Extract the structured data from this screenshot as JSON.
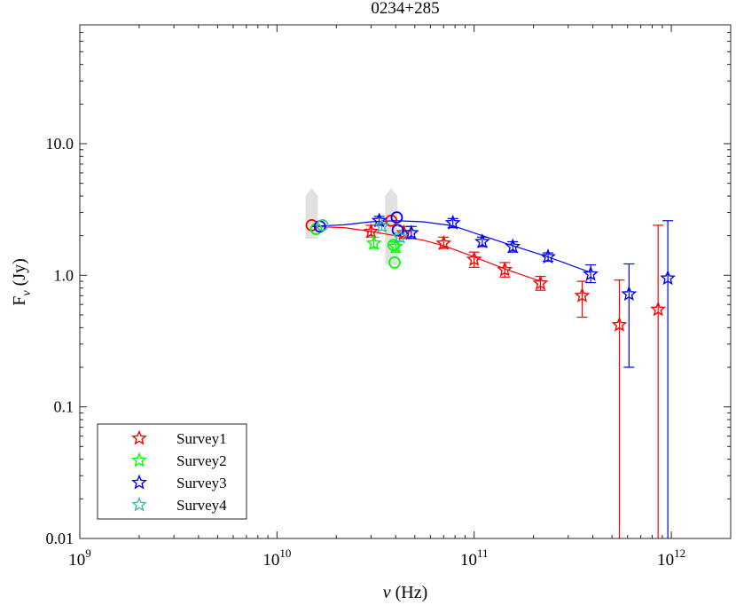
{
  "chart_data": {
    "type": "scatter",
    "title": "0234+285",
    "xlabel": "ν (Hz)",
    "ylabel": "Fν (Jy)",
    "ylabel_main": "F",
    "ylabel_sub": "ν",
    "ylabel_unit": " (Jy)",
    "xlabel_sym": "ν",
    "xlabel_unit": " (Hz)",
    "xscale": "log",
    "yscale": "log",
    "xlim": [
      1000000000.0,
      2000000000000.0
    ],
    "ylim": [
      0.01,
      80
    ],
    "legend_position": "bottom-left",
    "x_ticks": [
      {
        "value": 1000000000.0,
        "base": "10",
        "exp": "9"
      },
      {
        "value": 10000000000.0,
        "base": "10",
        "exp": "10"
      },
      {
        "value": 100000000000.0,
        "base": "10",
        "exp": "11"
      },
      {
        "value": 1000000000000.0,
        "base": "10",
        "exp": "12"
      }
    ],
    "y_ticks": [
      {
        "value": 0.01,
        "label": "0.01"
      },
      {
        "value": 0.1,
        "label": "0.1"
      },
      {
        "value": 1,
        "label": "1.0"
      },
      {
        "value": 10,
        "label": "10.0"
      }
    ],
    "variability_ranges": [
      {
        "x": 15000000000.0,
        "ylow": 1.9,
        "yhigh": 4.6
      },
      {
        "x": 38000000000.0,
        "ylow": 1.2,
        "yhigh": 4.6
      }
    ],
    "series": [
      {
        "name": "Survey1",
        "color": "#ff0000",
        "points": [
          {
            "x": 30000000000.0,
            "y": 2.15,
            "lo": 1.95,
            "hi": 2.4,
            "marker": "star"
          },
          {
            "x": 44000000000.0,
            "y": 2.1,
            "lo": 1.9,
            "hi": 2.35,
            "marker": "star"
          },
          {
            "x": 70000000000.0,
            "y": 1.75,
            "lo": 1.6,
            "hi": 1.95,
            "marker": "star"
          },
          {
            "x": 100000000000.0,
            "y": 1.32,
            "lo": 1.15,
            "hi": 1.5,
            "marker": "star"
          },
          {
            "x": 143000000000.0,
            "y": 1.1,
            "lo": 0.97,
            "hi": 1.25,
            "marker": "star"
          },
          {
            "x": 217000000000.0,
            "y": 0.87,
            "lo": 0.77,
            "hi": 0.98,
            "marker": "star"
          },
          {
            "x": 353000000000.0,
            "y": 0.7,
            "lo": 0.48,
            "hi": 0.9,
            "marker": "star"
          },
          {
            "x": 545000000000.0,
            "y": 0.42,
            "lo": 0.001,
            "hi": 0.92,
            "marker": "star"
          },
          {
            "x": 857000000000.0,
            "y": 0.55,
            "lo": 0.001,
            "hi": 2.4,
            "marker": "star"
          },
          {
            "x": 15000000000.0,
            "y": 2.4,
            "marker": "circle"
          },
          {
            "x": 38000000000.0,
            "y": 2.6,
            "marker": "circle"
          }
        ],
        "fit": [
          {
            "x": 15000000000.0,
            "y": 2.35
          },
          {
            "x": 22000000000.0,
            "y": 2.3
          },
          {
            "x": 30000000000.0,
            "y": 2.15
          },
          {
            "x": 40000000000.0,
            "y": 2.0
          },
          {
            "x": 55000000000.0,
            "y": 1.85
          },
          {
            "x": 70000000000.0,
            "y": 1.68
          },
          {
            "x": 100000000000.0,
            "y": 1.38
          },
          {
            "x": 143000000000.0,
            "y": 1.12
          },
          {
            "x": 217000000000.0,
            "y": 0.9
          }
        ]
      },
      {
        "name": "Survey2",
        "color": "#00ff00",
        "points": [
          {
            "x": 31000000000.0,
            "y": 1.75,
            "lo": 1.6,
            "hi": 1.95,
            "marker": "star"
          },
          {
            "x": 40000000000.0,
            "y": 1.65,
            "lo": 1.5,
            "hi": 1.8,
            "marker": "star"
          },
          {
            "x": 15800000000.0,
            "y": 2.25,
            "marker": "circle"
          },
          {
            "x": 39000000000.0,
            "y": 1.7,
            "marker": "circle"
          },
          {
            "x": 39500000000.0,
            "y": 1.25,
            "marker": "circle"
          }
        ],
        "fit": []
      },
      {
        "name": "Survey3",
        "color": "#0000ff",
        "points": [
          {
            "x": 33000000000.0,
            "y": 2.6,
            "lo": 2.4,
            "hi": 2.8,
            "marker": "star"
          },
          {
            "x": 48000000000.0,
            "y": 2.1,
            "lo": 1.9,
            "hi": 2.35,
            "marker": "star"
          },
          {
            "x": 78000000000.0,
            "y": 2.5,
            "lo": 2.3,
            "hi": 2.7,
            "marker": "star"
          },
          {
            "x": 110000000000.0,
            "y": 1.8,
            "lo": 1.65,
            "hi": 1.95,
            "marker": "star"
          },
          {
            "x": 157000000000.0,
            "y": 1.65,
            "lo": 1.5,
            "hi": 1.8,
            "marker": "star"
          },
          {
            "x": 237000000000.0,
            "y": 1.38,
            "lo": 1.28,
            "hi": 1.48,
            "marker": "star"
          },
          {
            "x": 390000000000.0,
            "y": 1.02,
            "lo": 0.88,
            "hi": 1.2,
            "marker": "star"
          },
          {
            "x": 610000000000.0,
            "y": 0.72,
            "lo": 0.2,
            "hi": 1.22,
            "marker": "star"
          },
          {
            "x": 960000000000.0,
            "y": 0.95,
            "lo": 0.001,
            "hi": 2.6,
            "marker": "star"
          },
          {
            "x": 16500000000.0,
            "y": 2.35,
            "marker": "circle"
          },
          {
            "x": 40500000000.0,
            "y": 2.75,
            "marker": "circle"
          },
          {
            "x": 41000000000.0,
            "y": 2.2,
            "marker": "circle"
          }
        ],
        "fit": [
          {
            "x": 15000000000.0,
            "y": 2.35
          },
          {
            "x": 22000000000.0,
            "y": 2.42
          },
          {
            "x": 30000000000.0,
            "y": 2.55
          },
          {
            "x": 40000000000.0,
            "y": 2.6
          },
          {
            "x": 55000000000.0,
            "y": 2.55
          },
          {
            "x": 78000000000.0,
            "y": 2.38
          },
          {
            "x": 110000000000.0,
            "y": 2.0
          },
          {
            "x": 157000000000.0,
            "y": 1.68
          },
          {
            "x": 237000000000.0,
            "y": 1.38
          },
          {
            "x": 390000000000.0,
            "y": 1.05
          }
        ]
      },
      {
        "name": "Survey4",
        "color": "#44bbaa",
        "points": [
          {
            "x": 34000000000.0,
            "y": 2.35,
            "lo": 2.2,
            "hi": 2.5,
            "marker": "star"
          },
          {
            "x": 42000000000.0,
            "y": 1.95,
            "lo": 1.8,
            "hi": 2.1,
            "marker": "star"
          },
          {
            "x": 17000000000.0,
            "y": 2.4,
            "marker": "circle"
          }
        ],
        "fit": []
      }
    ]
  }
}
